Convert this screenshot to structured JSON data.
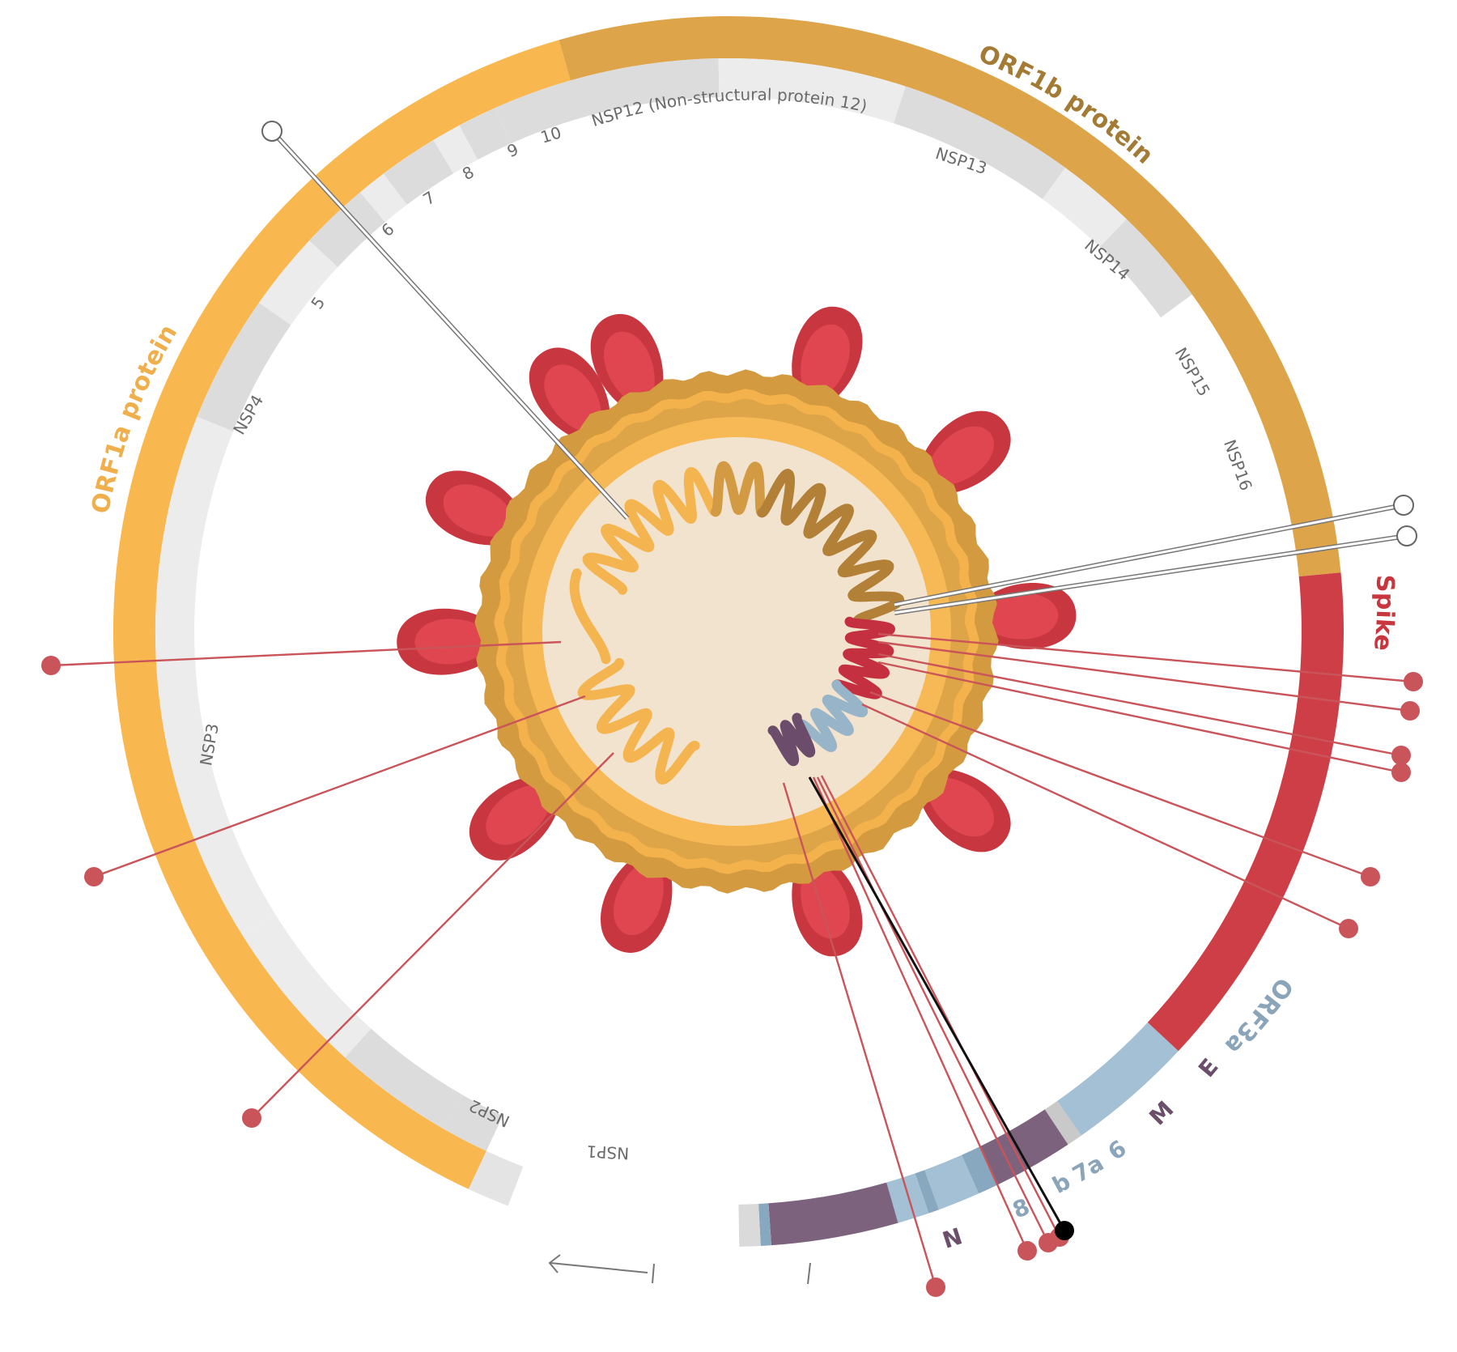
{
  "colors": {
    "orf1a": "#f9b74f",
    "orf1b": "#dea44a",
    "spike": "#cd3e46",
    "blue": "#a3c0d5",
    "blue_dark": "#88a8bf",
    "purple": "#7d627d",
    "gray": "#dcdcdc",
    "gray_light": "#ececec",
    "marker_red": "#c9545a",
    "orf1a_text": "#eeaf4c",
    "orf1b_text": "#a37b35",
    "spike_text": "#c8363e",
    "blue_text": "#8aa4b9",
    "purple_text": "#6a4e6a"
  },
  "genes": [
    {
      "id": "orf1a",
      "label": "ORF1a protein"
    },
    {
      "id": "orf1b",
      "label": "ORF1b protein"
    },
    {
      "id": "spike",
      "label": "Spike"
    },
    {
      "id": "orf3a",
      "label": "ORF3a"
    },
    {
      "id": "e",
      "label": "E"
    },
    {
      "id": "m",
      "label": "M"
    },
    {
      "id": "orf6",
      "label": "6"
    },
    {
      "id": "orf7a",
      "label": "7a"
    },
    {
      "id": "orf7b",
      "label": "b"
    },
    {
      "id": "orf8",
      "label": "8"
    },
    {
      "id": "n",
      "label": "N"
    }
  ],
  "nsp_labels": {
    "nsp1": "NSP1",
    "nsp2": "NSP2",
    "nsp3": "NSP3",
    "nsp4": "NSP4",
    "nsp5": "5",
    "nsp6": "6",
    "nsp7": "7",
    "nsp8": "8",
    "nsp9": "9",
    "nsp10": "10",
    "nsp12": "NSP12 (Non-structural protein 12)",
    "nsp13": "NSP13",
    "nsp14": "NSP14",
    "nsp15": "NSP15",
    "nsp16": "NSP16"
  },
  "mutation_markers": {
    "red_count": 13,
    "hollow_count": 3,
    "black_count": 1
  }
}
